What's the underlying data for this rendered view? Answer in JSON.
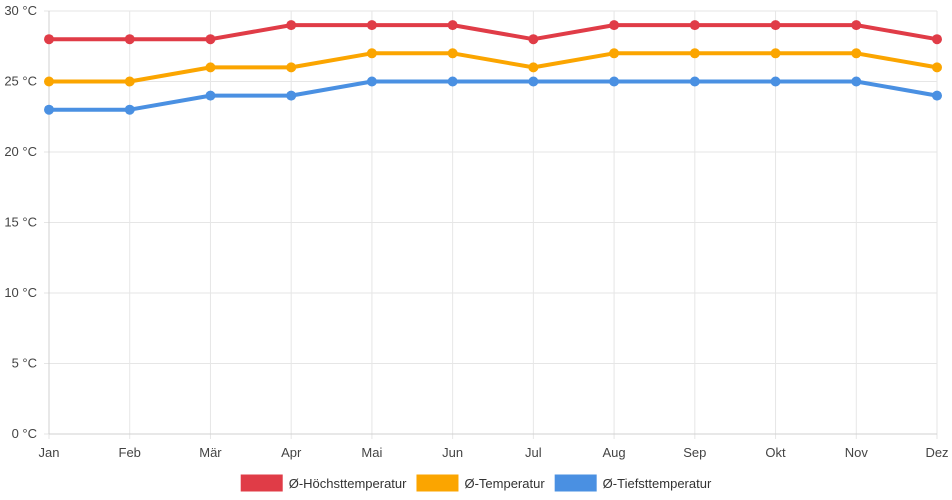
{
  "chart_data": {
    "type": "line",
    "title": "",
    "xlabel": "",
    "ylabel": "",
    "categories": [
      "Jan",
      "Feb",
      "Mär",
      "Apr",
      "Mai",
      "Jun",
      "Jul",
      "Aug",
      "Sep",
      "Okt",
      "Nov",
      "Dez"
    ],
    "y_ticks": [
      "0 °C",
      "5 °C",
      "10 °C",
      "15 °C",
      "20 °C",
      "25 °C",
      "30 °C"
    ],
    "ylim": [
      0,
      30
    ],
    "grid": true,
    "legend_position": "bottom",
    "series": [
      {
        "name": "Ø-Höchsttemperatur",
        "color": "#e03c47",
        "values": [
          28,
          28,
          28,
          29,
          29,
          29,
          28,
          29,
          29,
          29,
          29,
          28
        ]
      },
      {
        "name": "Ø-Temperatur",
        "color": "#fba500",
        "values": [
          25,
          25,
          26,
          26,
          27,
          27,
          26,
          27,
          27,
          27,
          27,
          26
        ]
      },
      {
        "name": "Ø-Tiefsttemperatur",
        "color": "#4a90e2",
        "values": [
          23,
          23,
          24,
          24,
          25,
          25,
          25,
          25,
          25,
          25,
          25,
          24
        ]
      }
    ]
  }
}
